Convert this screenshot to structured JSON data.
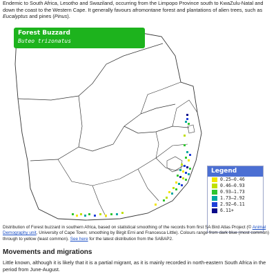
{
  "intro": {
    "part1": "Endemic to South Africa, Lesotho and Swaziland, occurring from the Limpopo Province south to KwaZulu-Natal and down the coast to the Western Cape. It generally favours afromontane forest and plantations of alien trees, such as ",
    "eucalyptus": "Eucalyptus",
    "part2": " and pines (",
    "pinus": "Pinus",
    "part3": ")."
  },
  "map": {
    "species_common": "Forest Buzzard",
    "species_scientific": "Buteo trizonatus",
    "legend_title": "Legend",
    "legend_items": [
      {
        "label": "0.25–0.46",
        "color": "#f2e600"
      },
      {
        "label": "0.46–0.93",
        "color": "#bfe000"
      },
      {
        "label": "0.93–1.73",
        "color": "#2fc52f"
      },
      {
        "label": "1.73–2.92",
        "color": "#00a8a0"
      },
      {
        "label": "2.92–6.11",
        "color": "#1f3fd8"
      },
      {
        "label": "6.11+",
        "color": "#0b0b8a"
      }
    ]
  },
  "caption": {
    "part1": "Distribution of Forest buzzard in southern Africa, based on statistical smoothing of the records from first SA Bird Atlas Project (© ",
    "link1": "Animal Demography unit",
    "part2": ", University of Cape Town; smoothing by Birgit Erni and Francesca Little). Colours range from dark blue (most common) through to yellow (least common). ",
    "link2": "See here",
    "part3": " for the latest distribution from the SABAP2."
  },
  "movements": {
    "title": "Movements and migrations",
    "body": "Little known, although it is likely that it is a partial migrant, as it is mainly recorded in north-eastern South Africa in the period from June-August."
  }
}
